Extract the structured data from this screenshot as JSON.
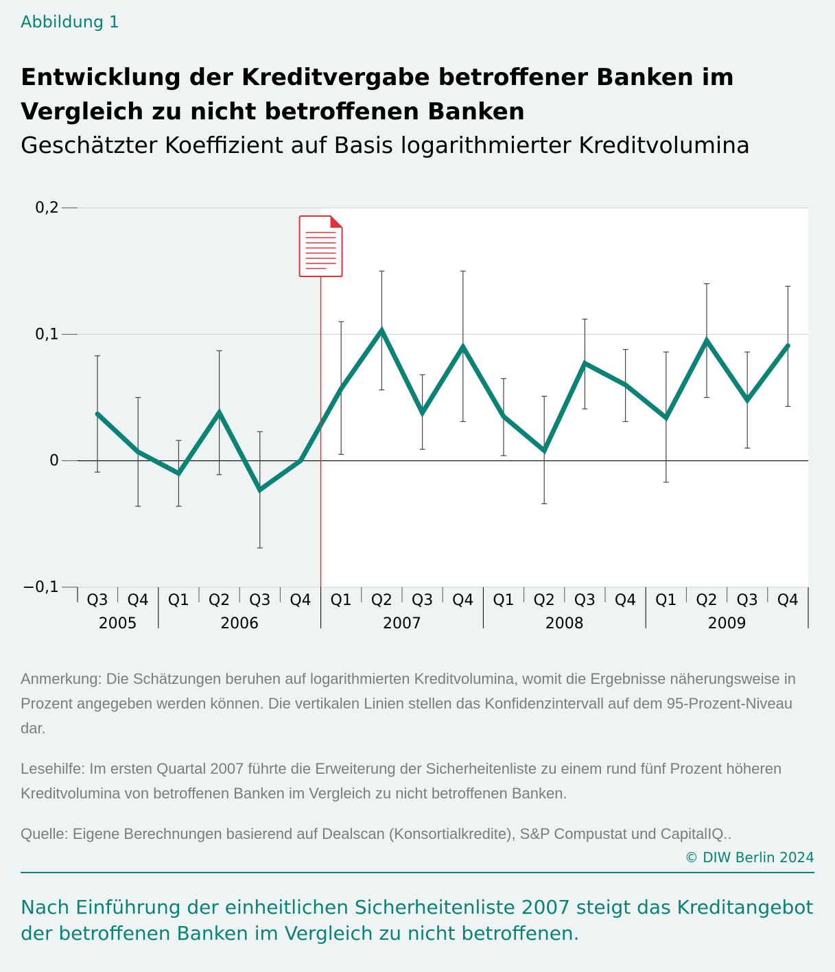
{
  "figure_label": "Abbildung 1",
  "title": "Entwicklung der Kreditvergabe betroffener Banken im Vergleich zu nicht betroffenen Banken",
  "subtitle": "Geschätzter Koeffizient auf Basis logarithmierter Kreditvolumina",
  "chart_data": {
    "type": "line",
    "title": "Entwicklung der Kreditvergabe betroffener Banken im Vergleich zu nicht betroffenen Banken",
    "subtitle": "Geschätzter Koeffizient auf Basis logarithmierter Kreditvolumina",
    "xlabel": "",
    "ylabel": "",
    "ylim": [
      -0.1,
      0.2
    ],
    "y_ticks": [
      {
        "value": -0.1,
        "label": "−0,1"
      },
      {
        "value": 0,
        "label": "0"
      },
      {
        "value": 0.1,
        "label": "0,1"
      },
      {
        "value": 0.2,
        "label": "0,2"
      }
    ],
    "grid": true,
    "years": [
      {
        "label": "2005",
        "quarters": [
          "Q3",
          "Q4"
        ]
      },
      {
        "label": "2006",
        "quarters": [
          "Q1",
          "Q2",
          "Q3",
          "Q4"
        ]
      },
      {
        "label": "2007",
        "quarters": [
          "Q1",
          "Q2",
          "Q3",
          "Q4"
        ]
      },
      {
        "label": "2008",
        "quarters": [
          "Q1",
          "Q2",
          "Q3",
          "Q4"
        ]
      },
      {
        "label": "2009",
        "quarters": [
          "Q1",
          "Q2",
          "Q3",
          "Q4"
        ]
      }
    ],
    "event_after_index": 5,
    "series": [
      {
        "color": "#0a8275",
        "values": [
          0.037,
          0.007,
          -0.01,
          0.038,
          -0.023,
          0.0,
          0.057,
          0.103,
          0.038,
          0.09,
          0.035,
          0.008,
          0.077,
          0.06,
          0.034,
          0.095,
          0.048,
          0.091
        ],
        "ci_low": [
          -0.009,
          -0.036,
          -0.036,
          -0.011,
          -0.069,
          null,
          0.005,
          0.056,
          0.009,
          0.031,
          0.004,
          -0.034,
          0.041,
          0.031,
          -0.017,
          0.05,
          0.01,
          0.043
        ],
        "ci_high": [
          0.083,
          0.05,
          0.016,
          0.087,
          0.023,
          null,
          0.11,
          0.15,
          0.068,
          0.15,
          0.065,
          0.051,
          0.112,
          0.088,
          0.086,
          0.14,
          0.086,
          0.138
        ]
      }
    ]
  },
  "colors": {
    "accent": "#0a8275",
    "event": "#e0323a",
    "notes": "#7c7c7c",
    "panel_left": "#eef4f3",
    "panel_right": "#ffffff"
  },
  "event_icon": "document-icon",
  "notes": {
    "anmerkung": "Anmerkung: Die Schätzungen beruhen auf logarithmierten Kreditvolumina, womit die Ergebnisse näherungsweise in Prozent angegeben werden können. Die vertikalen Linien stellen das Konfidenzintervall auf dem 95-Prozent-Niveau dar.",
    "lesehilfe": "Lesehilfe: Im ersten Quartal 2007 führte die Erweiterung der Sicherheitenliste zu einem rund fünf Prozent höheren Kreditvolumina von betroffenen Banken im Vergleich zu nicht betroffenen Banken.",
    "quelle": "Quelle: Eigene Berechnungen basierend auf Dealscan (Konsortialkredite), S&P Compustat und CapitalIQ.."
  },
  "copyright": "© DIW Berlin 2024",
  "takeaway": "Nach Einführung der einheitlichen Sicherheitenliste 2007 steigt das Kreditangebot der betroffenen Banken im Vergleich zu nicht betroffenen."
}
